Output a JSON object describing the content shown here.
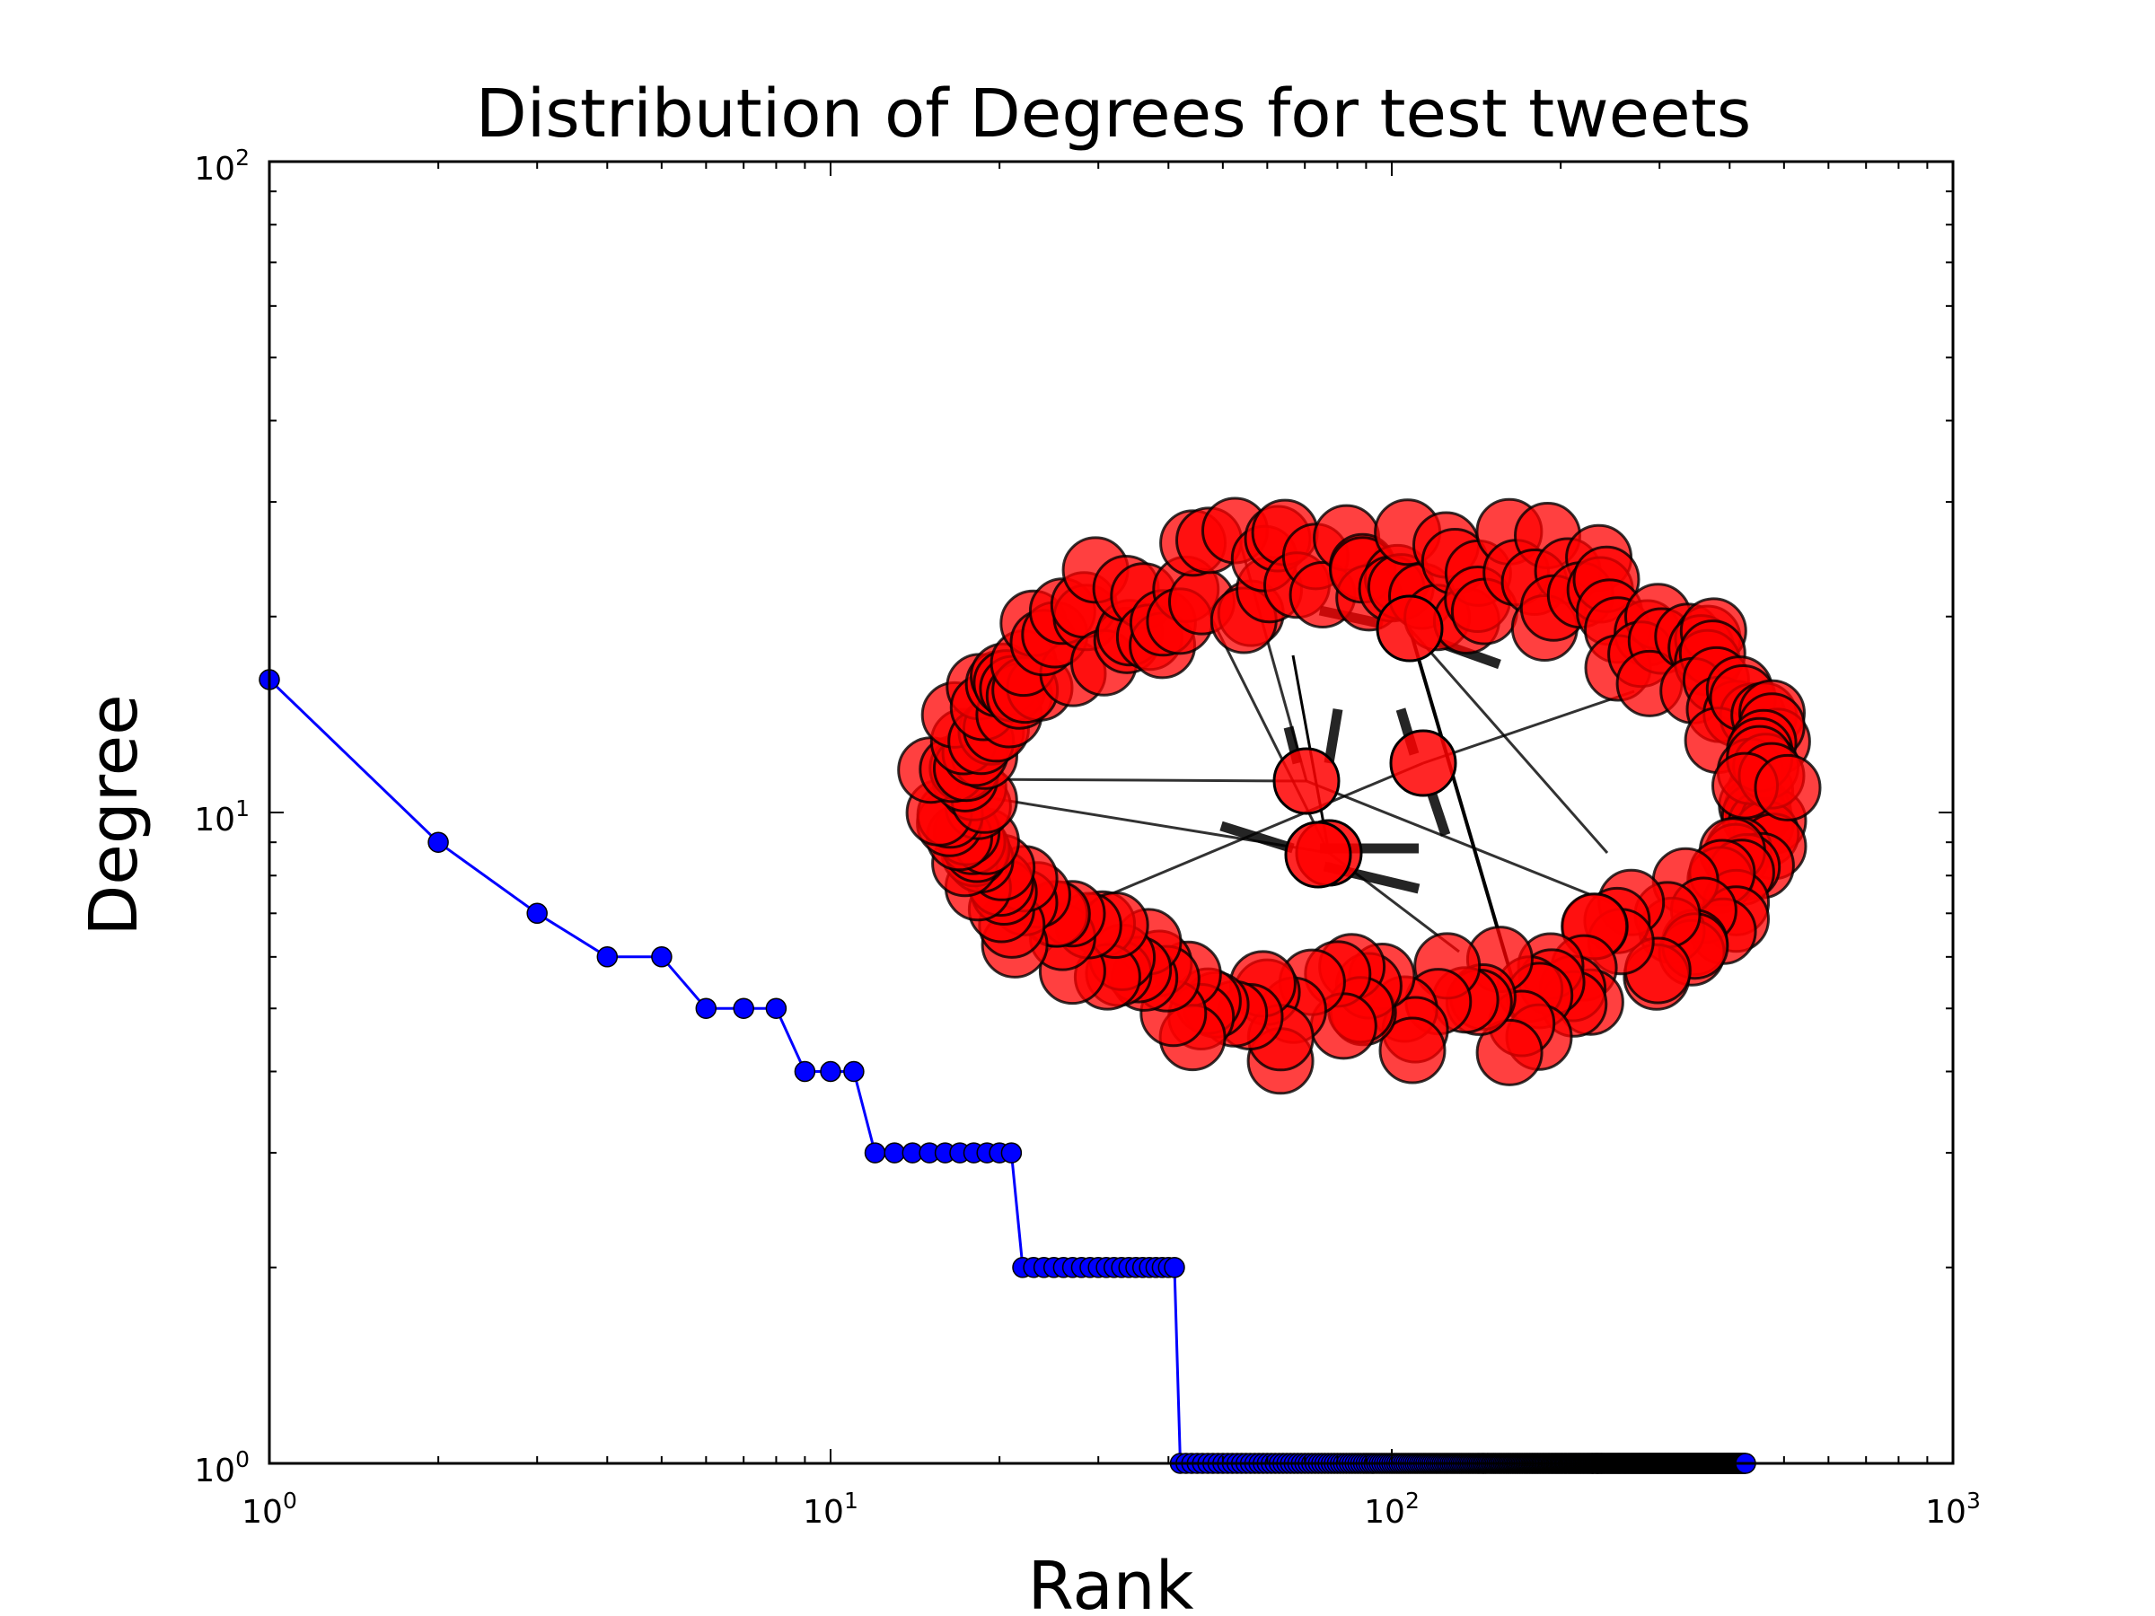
{
  "chart_data": {
    "type": "line",
    "title": "Distribution of Degrees for test tweets",
    "xlabel": "Rank",
    "ylabel": "Degree",
    "xscale": "log",
    "yscale": "log",
    "xlim": [
      1,
      1000
    ],
    "ylim": [
      1,
      100
    ],
    "xticks": [
      {
        "base": "10",
        "exp": "0"
      },
      {
        "base": "10",
        "exp": "1"
      },
      {
        "base": "10",
        "exp": "2"
      },
      {
        "base": "10",
        "exp": "3"
      }
    ],
    "yticks": [
      {
        "base": "10",
        "exp": "0"
      },
      {
        "base": "10",
        "exp": "1"
      },
      {
        "base": "10",
        "exp": "2"
      }
    ],
    "grid": false,
    "series": [
      {
        "color": "#0000ff",
        "marker": "circle",
        "groups": [
          {
            "degree": 16,
            "rank_start": 1,
            "rank_end": 1
          },
          {
            "degree": 9,
            "rank_start": 2,
            "rank_end": 2
          },
          {
            "degree": 7,
            "rank_start": 3,
            "rank_end": 3
          },
          {
            "degree": 6,
            "rank_start": 4,
            "rank_end": 5
          },
          {
            "degree": 5,
            "rank_start": 6,
            "rank_end": 8
          },
          {
            "degree": 4,
            "rank_start": 9,
            "rank_end": 11
          },
          {
            "degree": 3,
            "rank_start": 12,
            "rank_end": 21
          },
          {
            "degree": 2,
            "rank_start": 22,
            "rank_end": 41
          },
          {
            "degree": 1,
            "rank_start": 42,
            "rank_end": 427
          }
        ]
      }
    ],
    "inset": {
      "type": "network-graph",
      "node_color": "#ff0000",
      "edge_color": "#000000"
    }
  }
}
